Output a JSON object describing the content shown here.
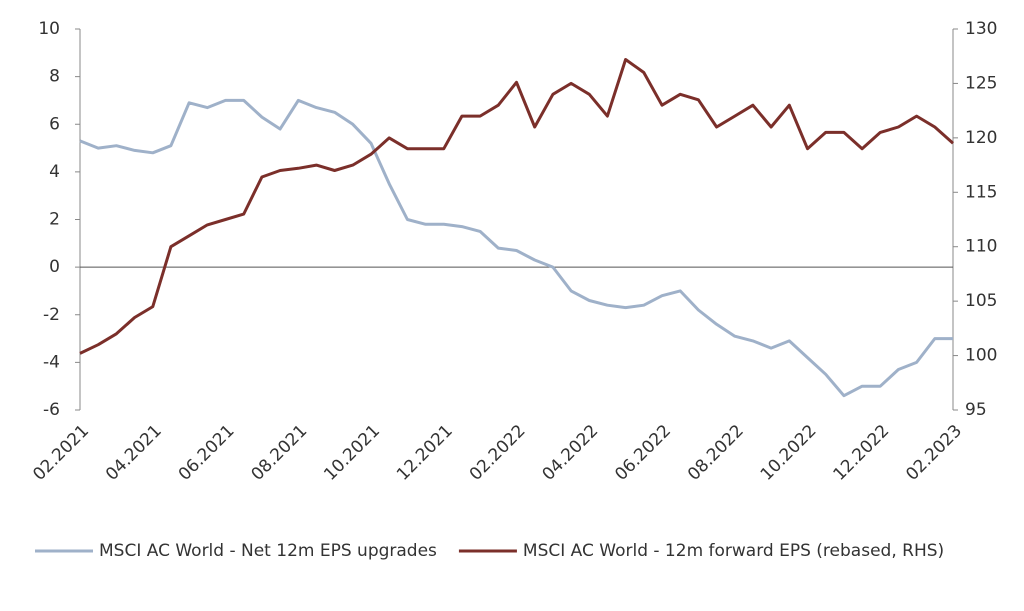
{
  "chart_data": {
    "type": "line",
    "categories": [
      "02.2021",
      null,
      null,
      null,
      "04.2021",
      null,
      null,
      null,
      "06.2021",
      null,
      null,
      null,
      "08.2021",
      null,
      null,
      null,
      "10.2021",
      null,
      null,
      null,
      "12.2021",
      null,
      null,
      null,
      "02.2022",
      null,
      null,
      null,
      "04.2022",
      null,
      null,
      null,
      "06.2022",
      null,
      null,
      null,
      "08.2022",
      null,
      null,
      null,
      "10.2022",
      null,
      null,
      null,
      "12.2022",
      null,
      null,
      null,
      "02.2023"
    ],
    "series": [
      {
        "name": "MSCI AC World - Net 12m EPS upgrades",
        "color": "#9fb1c9",
        "axis": "y",
        "values": [
          5.3,
          5.0,
          5.1,
          4.9,
          4.8,
          5.1,
          6.9,
          6.7,
          7.0,
          7.0,
          6.3,
          5.8,
          7.0,
          6.7,
          6.5,
          6.0,
          5.2,
          3.5,
          2.0,
          1.8,
          1.8,
          1.7,
          1.5,
          0.8,
          0.7,
          0.3,
          0.0,
          -1.0,
          -1.4,
          -1.6,
          -1.7,
          -1.6,
          -1.2,
          -1.0,
          -1.8,
          -2.4,
          -2.9,
          -3.1,
          -3.4,
          -3.1,
          -3.8,
          -4.5,
          -5.4,
          -5.0,
          -5.0,
          -4.3,
          -4.0,
          -3.0,
          -3.0
        ]
      },
      {
        "name": "MSCI AC World - 12m forward EPS (rebased, RHS)",
        "color": "#7b2f2a",
        "axis": "y2",
        "values": [
          100.2,
          101,
          102,
          103.5,
          104.5,
          110,
          111,
          112,
          112.5,
          113,
          116.4,
          117,
          117.2,
          117.5,
          117,
          117.5,
          118.5,
          120,
          119,
          119,
          119,
          122,
          122,
          123,
          125.1,
          121,
          124,
          125,
          124,
          122,
          127.2,
          126,
          123,
          124,
          123.5,
          121,
          122,
          123,
          121,
          123,
          119,
          120.5,
          120.5,
          119,
          120.5,
          121,
          122,
          121,
          119.5
        ]
      }
    ],
    "ylim": [
      -6,
      10
    ],
    "yticks": [
      -6,
      -4,
      -2,
      0,
      2,
      4,
      6,
      8,
      10
    ],
    "y2lim": [
      95,
      130
    ],
    "y2ticks": [
      95,
      100,
      105,
      110,
      115,
      120,
      125,
      130
    ],
    "legend": "bottom"
  }
}
